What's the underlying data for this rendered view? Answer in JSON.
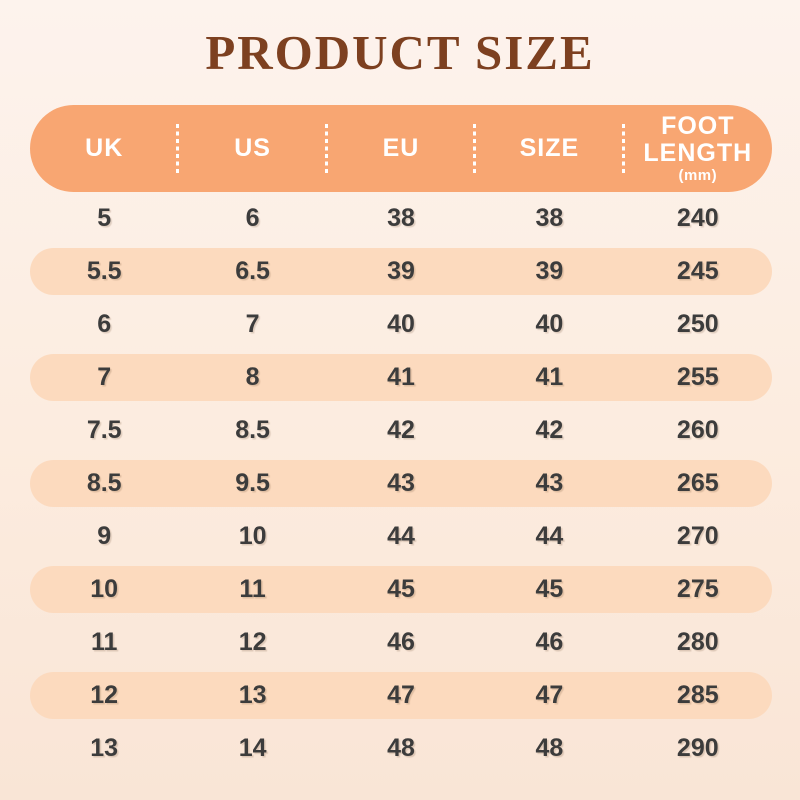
{
  "title": "PRODUCT SIZE",
  "colors": {
    "background_top": "#fdf3ed",
    "background_bottom": "#f9e5d6",
    "header_pill": "#f8a672",
    "alt_row_pill": "#fcdabe",
    "title_text": "#7d4020",
    "header_text": "#ffffff",
    "data_text": "#3c3c3c"
  },
  "table": {
    "columns": [
      {
        "label": "UK"
      },
      {
        "label": "US"
      },
      {
        "label": "EU"
      },
      {
        "label": "SIZE"
      },
      {
        "label": "FOOT LENGTH",
        "unit": "(mm)"
      }
    ],
    "rows": [
      [
        "5",
        "6",
        "38",
        "38",
        "240"
      ],
      [
        "5.5",
        "6.5",
        "39",
        "39",
        "245"
      ],
      [
        "6",
        "7",
        "40",
        "40",
        "250"
      ],
      [
        "7",
        "8",
        "41",
        "41",
        "255"
      ],
      [
        "7.5",
        "8.5",
        "42",
        "42",
        "260"
      ],
      [
        "8.5",
        "9.5",
        "43",
        "43",
        "265"
      ],
      [
        "9",
        "10",
        "44",
        "44",
        "270"
      ],
      [
        "10",
        "11",
        "45",
        "45",
        "275"
      ],
      [
        "11",
        "12",
        "46",
        "46",
        "280"
      ],
      [
        "12",
        "13",
        "47",
        "47",
        "285"
      ],
      [
        "13",
        "14",
        "48",
        "48",
        "290"
      ]
    ]
  }
}
